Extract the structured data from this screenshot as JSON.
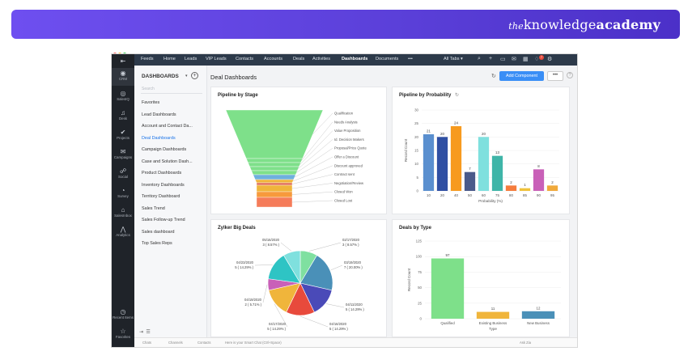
{
  "banner": {
    "brand_the": "the",
    "brand_knowledge": "knowledge",
    "brand_academy": "academy"
  },
  "window_dots": [
    "#f25f58",
    "#f9be2e",
    "#35c84a"
  ],
  "leftbar": {
    "items": [
      {
        "label": "",
        "icon": "collapse-icon"
      },
      {
        "label": "CRM",
        "icon": "crm-icon"
      },
      {
        "label": "SalesIQ",
        "icon": "salesiq-icon"
      },
      {
        "label": "Desk",
        "icon": "desk-icon"
      },
      {
        "label": "Projects",
        "icon": "projects-icon"
      },
      {
        "label": "Campaigns",
        "icon": "campaigns-icon"
      },
      {
        "label": "Social",
        "icon": "social-icon"
      },
      {
        "label": "Survey",
        "icon": "survey-icon"
      },
      {
        "label": "SalesInbox",
        "icon": "salesinbox-icon"
      },
      {
        "label": "Analytics",
        "icon": "analytics-icon"
      }
    ],
    "bottom": [
      {
        "label": "Recent Items",
        "icon": "clock-icon"
      },
      {
        "label": "Favorites",
        "icon": "star-icon"
      }
    ]
  },
  "topnav": {
    "tabs": [
      "Feeds",
      "Home",
      "Leads",
      "VIP Leads",
      "Contacts",
      "Accounts",
      "Deals",
      "Activities",
      "Dashboards",
      "Documents",
      "•••"
    ],
    "active": "Dashboards",
    "all_tabs": "All Tabs ▾",
    "notif_count": "7"
  },
  "sidepanel": {
    "title": "DASHBOARDS",
    "search_placeholder": "Search",
    "items": [
      "Favorites",
      "Lead Dashboards",
      "Account and Contact Da...",
      "Deal Dashboards",
      "Campaign Dashboards",
      "Case and Solution Dash...",
      "Product Dashboards",
      "Inventory Dashboards",
      "Territory Dashboard",
      "Sales Trend",
      "Sales Follow-up Trend",
      "Sales dashboard",
      "Top Sales Reps"
    ],
    "active_index": 3
  },
  "content": {
    "title": "Deal Dashboards",
    "add_component": "Add Component",
    "more": "•••",
    "help": "?"
  },
  "statusbar": {
    "items": [
      "Chats",
      "Channels",
      "Contacts"
    ],
    "chat_hint": "Here is your Smart Chat (Ctrl+Space)",
    "lang": "Ask Zia"
  },
  "chart_data": [
    {
      "type": "funnel",
      "title": "Pipeline by Stage",
      "categories": [
        "Qualification",
        "Needs Analysis",
        "Value Proposition",
        "Id. Decision Makers",
        "Proposal/Price Quote",
        "Offer a Discount",
        "Discount approved",
        "Contract sent",
        "Negotiation/Review",
        "Closed Won",
        "Closed Lost"
      ],
      "colors": [
        "#7ee08a",
        "#7ee08a",
        "#7ee08a",
        "#7ee08a",
        "#7ee08a",
        "#6fb0dd",
        "#f0b53b",
        "#e06e56",
        "#f0b53b",
        "#f79a3c",
        "#f57c5a"
      ]
    },
    {
      "type": "bar",
      "title": "Pipeline by Probability",
      "xlabel": "Probability (%)",
      "ylabel": "Record Count",
      "categories": [
        "10",
        "20",
        "40",
        "50",
        "60",
        "75",
        "80",
        "85",
        "90",
        "95"
      ],
      "values": [
        21,
        20,
        24,
        7,
        20,
        13,
        2,
        1,
        8,
        2
      ],
      "colors": [
        "#5a8fcf",
        "#2f4fa3",
        "#f79a1e",
        "#4a5a8a",
        "#7fe0de",
        "#3fb5a8",
        "#f57c3c",
        "#f0c23b",
        "#c960b8",
        "#f0a93b"
      ],
      "ylim": [
        0,
        30
      ],
      "yticks": [
        0,
        5,
        10,
        15,
        20,
        25,
        30
      ]
    },
    {
      "type": "pie",
      "title": "Zylker Big Deals",
      "slices": [
        {
          "label": "02/17/2020",
          "detail": "3 ( 8.57% )",
          "value": 8.57,
          "color": "#7fe0a0"
        },
        {
          "label": "03/19/2020",
          "detail": "7 ( 20.00% )",
          "value": 20.0,
          "color": "#4a90b8"
        },
        {
          "label": "04/11/2020",
          "detail": "5 ( 14.29% )",
          "value": 14.29,
          "color": "#4a4ab8"
        },
        {
          "label": "04/16/2020",
          "detail": "5 ( 14.29% )",
          "value": 14.29,
          "color": "#e84a3c"
        },
        {
          "label": "04/17/2020",
          "detail": "5 ( 14.29% )",
          "value": 14.29,
          "color": "#f0b53b"
        },
        {
          "label": "04/19/2020",
          "detail": "2 ( 5.71% )",
          "value": 5.71,
          "color": "#c960b8"
        },
        {
          "label": "04/23/2020",
          "detail": "5 ( 14.29% )",
          "value": 14.29,
          "color": "#2ec4c4"
        },
        {
          "label": "05/16/2020",
          "detail": "3 ( 8.57% )",
          "value": 8.57,
          "color": "#7fe0de"
        }
      ]
    },
    {
      "type": "bar",
      "title": "Deals by Type",
      "xlabel": "Type",
      "ylabel": "Record Count",
      "categories": [
        "Qualified",
        "Existing Business",
        "New Business"
      ],
      "values": [
        97,
        11,
        12
      ],
      "colors": [
        "#7ee08a",
        "#f0b53b",
        "#4a90b8"
      ],
      "ylim": [
        0,
        125
      ],
      "yticks": [
        0,
        25,
        50,
        75,
        100,
        125
      ]
    }
  ]
}
